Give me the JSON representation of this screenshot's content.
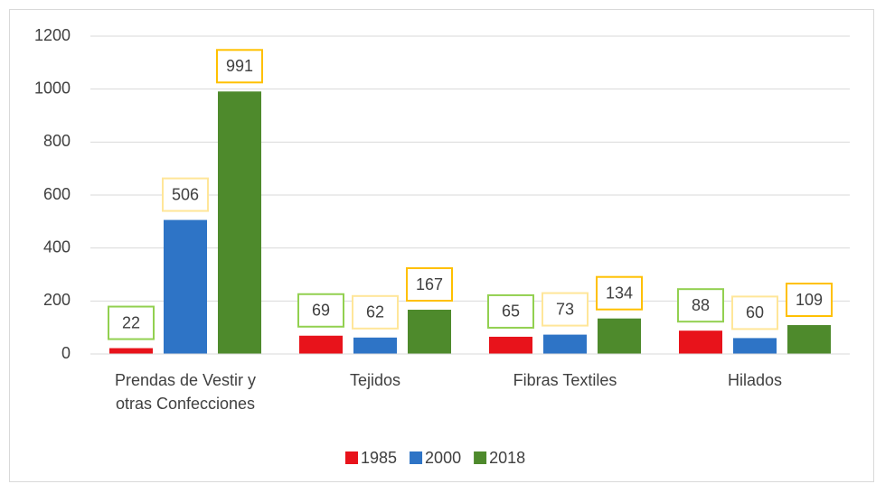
{
  "chart_data": {
    "type": "bar",
    "categories": [
      "Prendas de Vestir y otras Confecciones",
      "Tejidos",
      "Fibras Textiles",
      "Hilados"
    ],
    "series": [
      {
        "name": "1985",
        "color": "#e8131b",
        "label_box_color": "#92d050",
        "values": [
          22,
          69,
          65,
          88
        ]
      },
      {
        "name": "2000",
        "color": "#2e74c6",
        "label_box_color": "#ffe699",
        "values": [
          506,
          62,
          73,
          60
        ]
      },
      {
        "name": "2018",
        "color": "#4e8a2c",
        "label_box_color": "#ffc000",
        "values": [
          991,
          167,
          134,
          109
        ]
      }
    ],
    "ylim": [
      0,
      1200
    ],
    "yticks": [
      0,
      200,
      400,
      600,
      800,
      1000,
      1200
    ],
    "grid": true,
    "legend": "bottom"
  }
}
